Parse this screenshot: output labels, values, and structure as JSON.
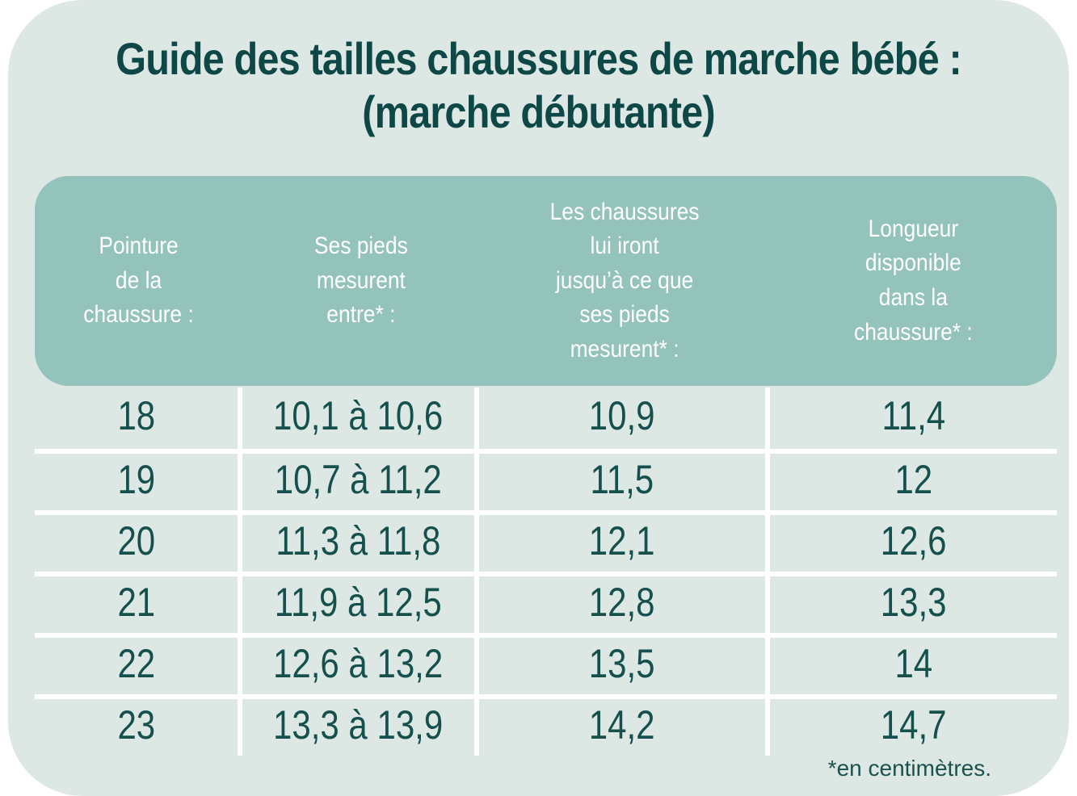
{
  "title": {
    "line1": "Guide des tailles chaussures de marche bébé :",
    "line2": "(marche débutante)"
  },
  "table": {
    "header": {
      "columns": [
        {
          "id": "pointure",
          "label": [
            "Pointure",
            "de la",
            "chaussure :"
          ]
        },
        {
          "id": "pieds",
          "label": [
            "Ses pieds",
            "mesurent",
            "entre* :"
          ]
        },
        {
          "id": "iront",
          "label": [
            "Les chaussures",
            "lui iront",
            "jusqu’à ce que",
            "ses pieds",
            "mesurent* :"
          ]
        },
        {
          "id": "longueur",
          "label": [
            "Longueur",
            "disponible",
            "dans la",
            "chaussure* :"
          ]
        }
      ]
    },
    "rows": [
      [
        "18",
        "10,1 à 10,6",
        "10,9",
        "11,4"
      ],
      [
        "19",
        "10,7 à 11,2",
        "11,5",
        "12"
      ],
      [
        "20",
        "11,3 à 11,8",
        "12,1",
        "12,6"
      ],
      [
        "21",
        "11,9 à 12,5",
        "12,8",
        "13,3"
      ],
      [
        "22",
        "12,6 à 13,2",
        "13,5",
        "14"
      ],
      [
        "23",
        "13,3 à 13,9",
        "14,2",
        "14,7"
      ]
    ]
  },
  "footnote": "*en centimètres.",
  "colors": {
    "page_background": "#ffffff",
    "card_background": "#dde8e5",
    "header_band": "#93c3ba",
    "header_text": "#ffffff",
    "title_text": "#0e4846",
    "table_text": "#15504d",
    "divider": "#ffffff"
  },
  "chart_data": {
    "type": "table",
    "title": "Guide des tailles chaussures de marche bébé : (marche débutante)",
    "columns": [
      "Pointure de la chaussure :",
      "Ses pieds mesurent entre* :",
      "Les chaussures lui iront jusqu’à ce que ses pieds mesurent* :",
      "Longueur disponible dans la chaussure* :"
    ],
    "rows": [
      [
        "18",
        "10,1 à 10,6",
        "10,9",
        "11,4"
      ],
      [
        "19",
        "10,7 à 11,2",
        "11,5",
        "12"
      ],
      [
        "20",
        "11,3 à 11,8",
        "12,1",
        "12,6"
      ],
      [
        "21",
        "11,9 à 12,5",
        "12,8",
        "13,3"
      ],
      [
        "22",
        "12,6 à 13,2",
        "13,5",
        "14"
      ],
      [
        "23",
        "13,3 à 13,9",
        "14,2",
        "14,7"
      ]
    ],
    "footnote": "*en centimètres.",
    "units": "centimètres"
  }
}
